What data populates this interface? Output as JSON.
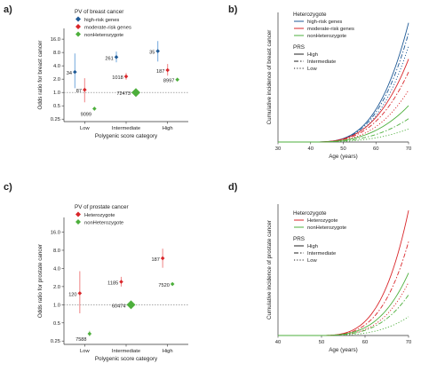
{
  "panel_labels": [
    "a)",
    "b)",
    "c)",
    "d)"
  ],
  "colors": {
    "high_risk": "#1f5a96",
    "moderate": "#d9262a",
    "non_hetero": "#4daf3c",
    "hetero": "#d9262a",
    "ci_high_risk": "#7fb0e0",
    "ci_moderate": "#f08e8f",
    "ci_non_hetero": "#a8d898",
    "ref_line": "#777777"
  },
  "chart_data": [
    {
      "type": "scatter",
      "panel": "a)",
      "legend_title": "PV of breast cancer",
      "legend_position": "top-left",
      "xlabel": "Polygenic score category",
      "ylabel": "Odds ratio for breast cancer",
      "y_scale": "log",
      "ylim": [
        0.22,
        28
      ],
      "yticks": [
        "0.25",
        "0.5",
        "1.0",
        "2.0",
        "4.0",
        "8.0",
        "16.0"
      ],
      "categories": [
        "Low",
        "Intermediate",
        "High"
      ],
      "reference_line": 1.0,
      "series": [
        {
          "name": "high-risk genes",
          "color_key": "high_risk",
          "points": [
            {
              "category": "Low",
              "or": 2.9,
              "lo": 1.25,
              "hi": 7.6,
              "n": "34"
            },
            {
              "category": "Intermediate",
              "or": 6.3,
              "lo": 4.8,
              "hi": 8.4,
              "n": "261"
            },
            {
              "category": "High",
              "or": 8.6,
              "lo": 5.0,
              "hi": 14.5,
              "n": "35"
            }
          ]
        },
        {
          "name": "moderate-risk genes",
          "color_key": "moderate",
          "points": [
            {
              "category": "Low",
              "or": 1.15,
              "lo": 0.6,
              "hi": 2.1,
              "n": "87"
            },
            {
              "category": "Intermediate",
              "or": 2.3,
              "lo": 1.95,
              "hi": 2.75,
              "n": "1018"
            },
            {
              "category": "High",
              "or": 3.2,
              "lo": 2.4,
              "hi": 4.4,
              "n": "187"
            }
          ]
        },
        {
          "name": "nonHeterozygote",
          "color_key": "non_hetero",
          "points": [
            {
              "category": "Low",
              "or": 0.43,
              "lo": 0.39,
              "hi": 0.47,
              "n": "9099"
            },
            {
              "category": "Intermediate",
              "or": 1.0,
              "lo": 1.0,
              "hi": 1.0,
              "n": "72473"
            },
            {
              "category": "High",
              "or": 1.95,
              "lo": 1.85,
              "hi": 2.05,
              "n": "8997"
            }
          ]
        }
      ]
    },
    {
      "type": "line",
      "panel": "b)",
      "xlabel": "Age (years)",
      "ylabel": "Cumulative incidence of breast cancer",
      "xlim": [
        30,
        70
      ],
      "ylim": [
        0,
        0.5
      ],
      "xticks": [
        "30",
        "40",
        "50",
        "60",
        "70"
      ],
      "legend_position": "top-left",
      "legend_title": "Heterozygote",
      "legend_groups": [
        {
          "name": "high-risk genes",
          "color_key": "high_risk"
        },
        {
          "name": "moderate-risk genes",
          "color_key": "moderate"
        },
        {
          "name": "nonHeterozygote",
          "color_key": "non_hetero"
        }
      ],
      "prs_title": "PRS",
      "prs_levels": [
        "High",
        "Intermediate",
        "Low"
      ],
      "x_start": 40,
      "series": [
        {
          "group": "high-risk genes",
          "prs": "High",
          "y_end": 0.46,
          "k": 3.2
        },
        {
          "group": "high-risk genes",
          "prs": "Intermediate",
          "y_end": 0.42,
          "k": 3.2
        },
        {
          "group": "high-risk genes",
          "prs": "Low",
          "y_end": 0.37,
          "k": 3.2
        },
        {
          "group": "moderate-risk genes",
          "prs": "High",
          "y_end": 0.32,
          "k": 3.0
        },
        {
          "group": "moderate-risk genes",
          "prs": "Intermediate",
          "y_end": 0.27,
          "k": 3.0
        },
        {
          "group": "moderate-risk genes",
          "prs": "Low",
          "y_end": 0.2,
          "k": 3.0
        },
        {
          "group": "nonHeterozygote",
          "prs": "High",
          "y_end": 0.14,
          "k": 2.8
        },
        {
          "group": "nonHeterozygote",
          "prs": "Intermediate",
          "y_end": 0.09,
          "k": 2.8
        },
        {
          "group": "nonHeterozygote",
          "prs": "Low",
          "y_end": 0.05,
          "k": 2.8
        }
      ]
    },
    {
      "type": "scatter",
      "panel": "c)",
      "legend_title": "PV of prostate cancer",
      "legend_position": "top-left",
      "xlabel": "Polygenic score category",
      "ylabel": "Odds ratio for prostate cancer",
      "y_scale": "log",
      "ylim": [
        0.22,
        28
      ],
      "yticks": [
        "0.25",
        "0.5",
        "1.0",
        "2.0",
        "4.0",
        "8.0",
        "16.0"
      ],
      "categories": [
        "Low",
        "Intermediate",
        "High"
      ],
      "reference_line": 1.0,
      "series": [
        {
          "name": "Heterozygote",
          "color_key": "hetero",
          "points": [
            {
              "category": "Low",
              "or": 1.55,
              "lo": 0.72,
              "hi": 3.6,
              "n": "120"
            },
            {
              "category": "Intermediate",
              "or": 2.4,
              "lo": 2.0,
              "hi": 2.9,
              "n": "1185"
            },
            {
              "category": "High",
              "or": 5.9,
              "lo": 4.1,
              "hi": 8.5,
              "n": "187"
            }
          ]
        },
        {
          "name": "nonHeterozygote",
          "color_key": "non_hetero",
          "points": [
            {
              "category": "Low",
              "or": 0.33,
              "lo": 0.3,
              "hi": 0.37,
              "n": "7588"
            },
            {
              "category": "Intermediate",
              "or": 1.0,
              "lo": 1.0,
              "hi": 1.0,
              "n": "60474"
            },
            {
              "category": "High",
              "or": 2.2,
              "lo": 2.1,
              "hi": 2.3,
              "n": "7520"
            }
          ]
        }
      ]
    },
    {
      "type": "line",
      "panel": "d)",
      "xlabel": "Age (years)",
      "ylabel": "Cumulative incidence of prostate cancer",
      "xlim": [
        40,
        70
      ],
      "ylim": [
        0,
        0.42
      ],
      "xticks": [
        "40",
        "50",
        "60",
        "70"
      ],
      "legend_position": "top-left",
      "legend_title": "Heterozygote",
      "legend_groups": [
        {
          "name": "Heterozygote",
          "color_key": "hetero"
        },
        {
          "name": "nonHeterozygote",
          "color_key": "non_hetero"
        }
      ],
      "prs_title": "PRS",
      "prs_levels": [
        "High",
        "Intermediate",
        "Low"
      ],
      "x_start": 48,
      "series": [
        {
          "group": "Heterozygote",
          "prs": "High",
          "y_end": 0.4,
          "k": 3.6
        },
        {
          "group": "Heterozygote",
          "prs": "Intermediate",
          "y_end": 0.3,
          "k": 3.6
        },
        {
          "group": "Heterozygote",
          "prs": "Low",
          "y_end": 0.17,
          "k": 3.6
        },
        {
          "group": "nonHeterozygote",
          "prs": "High",
          "y_end": 0.2,
          "k": 3.4
        },
        {
          "group": "nonHeterozygote",
          "prs": "Intermediate",
          "y_end": 0.13,
          "k": 3.4
        },
        {
          "group": "nonHeterozygote",
          "prs": "Low",
          "y_end": 0.06,
          "k": 3.4
        }
      ]
    }
  ]
}
